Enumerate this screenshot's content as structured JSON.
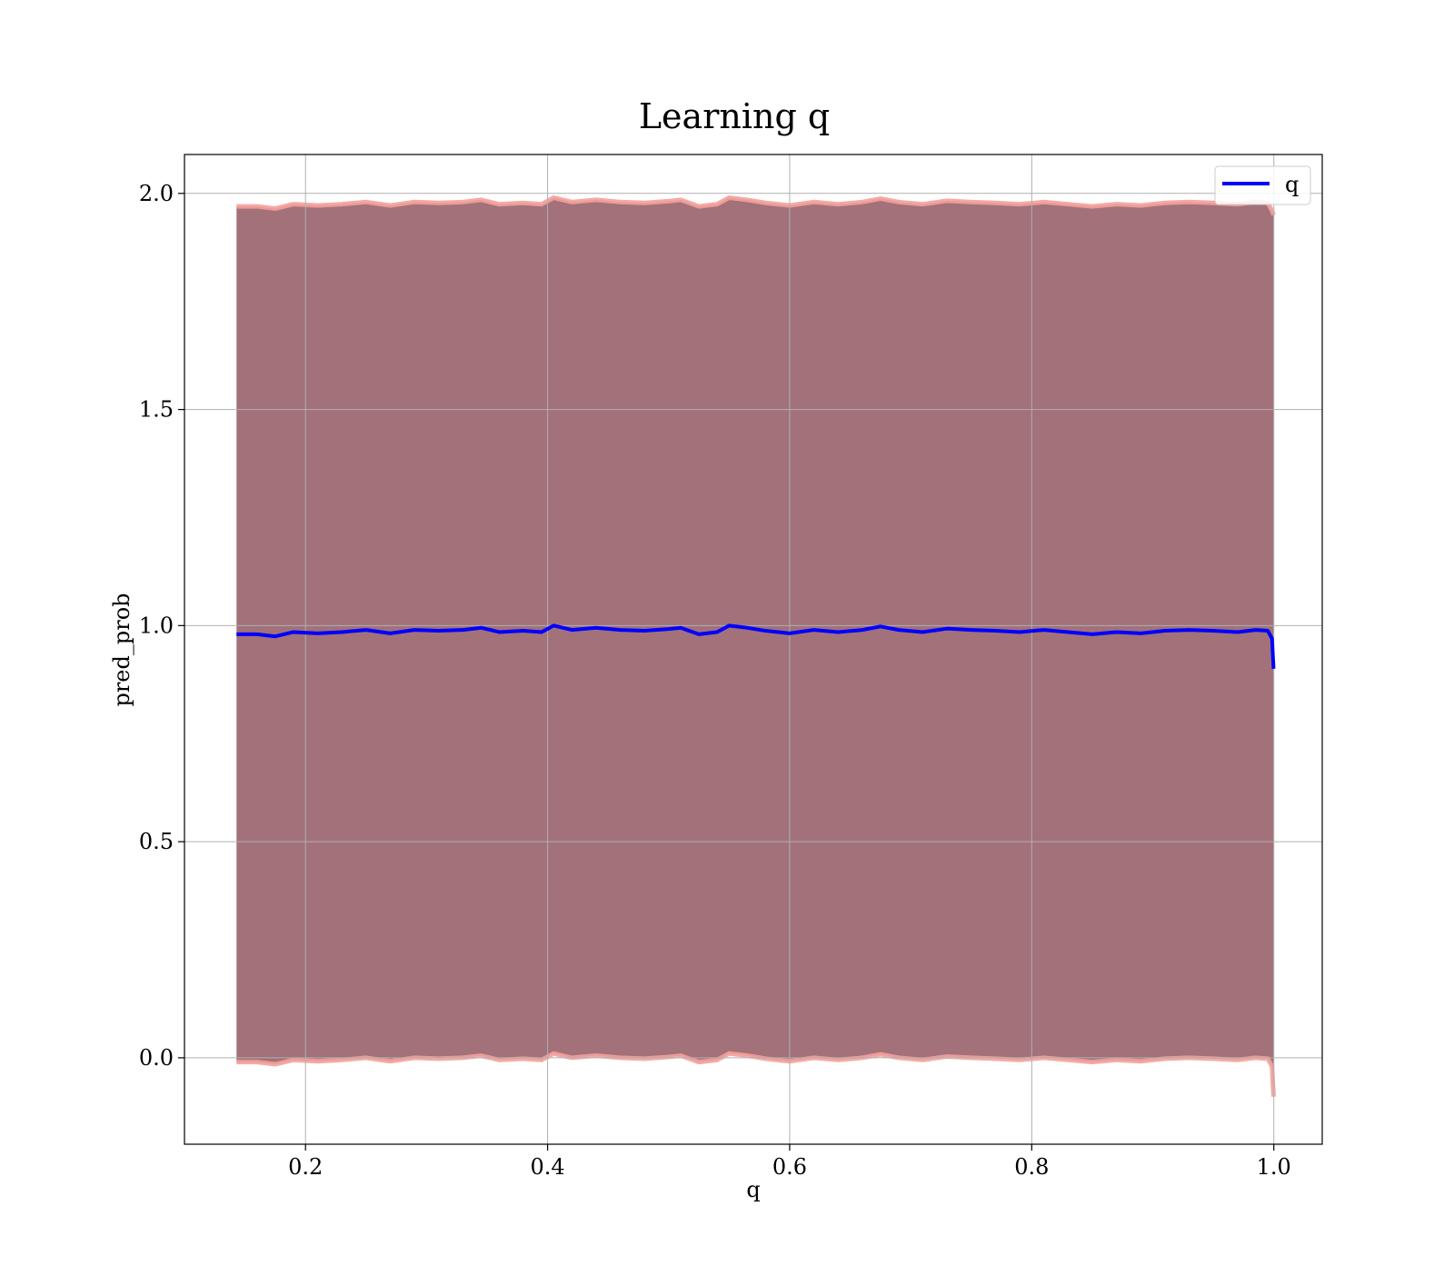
{
  "chart_data": {
    "type": "line",
    "title": "Learning q",
    "xlabel": "q",
    "ylabel": "pred_prob",
    "xlim": [
      0.1,
      1.04
    ],
    "ylim": [
      -0.2,
      2.09
    ],
    "grid": true,
    "legend_position": "top-right",
    "x_ticks": [
      0.2,
      0.4,
      0.6,
      0.8,
      1.0
    ],
    "x_tick_labels": [
      "0.2",
      "0.4",
      "0.6",
      "0.8",
      "1.0"
    ],
    "y_ticks": [
      0.0,
      0.5,
      1.0,
      1.5,
      2.0
    ],
    "y_tick_labels": [
      "0.0",
      "0.5",
      "1.0",
      "1.5",
      "2.0"
    ],
    "series": [
      {
        "name": "q",
        "color": "#0000ff",
        "x": [
          0.143,
          0.16,
          0.175,
          0.19,
          0.21,
          0.23,
          0.25,
          0.27,
          0.29,
          0.31,
          0.33,
          0.345,
          0.36,
          0.38,
          0.395,
          0.405,
          0.42,
          0.44,
          0.46,
          0.48,
          0.5,
          0.51,
          0.525,
          0.54,
          0.55,
          0.565,
          0.58,
          0.6,
          0.62,
          0.64,
          0.66,
          0.675,
          0.69,
          0.71,
          0.73,
          0.75,
          0.77,
          0.79,
          0.81,
          0.83,
          0.85,
          0.87,
          0.89,
          0.91,
          0.93,
          0.95,
          0.97,
          0.985,
          0.995,
          0.9985,
          0.9998
        ],
        "y": [
          0.98,
          0.98,
          0.975,
          0.985,
          0.982,
          0.985,
          0.99,
          0.982,
          0.99,
          0.988,
          0.99,
          0.995,
          0.985,
          0.988,
          0.985,
          1.0,
          0.99,
          0.995,
          0.99,
          0.988,
          0.992,
          0.995,
          0.98,
          0.985,
          1.0,
          0.995,
          0.988,
          0.982,
          0.99,
          0.985,
          0.99,
          0.998,
          0.99,
          0.985,
          0.993,
          0.99,
          0.988,
          0.985,
          0.99,
          0.985,
          0.98,
          0.985,
          0.982,
          0.988,
          0.99,
          0.988,
          0.985,
          0.99,
          0.988,
          0.97,
          0.9
        ],
        "band_lower": [
          -0.01,
          -0.01,
          -0.015,
          -0.005,
          -0.008,
          -0.005,
          0.0,
          -0.008,
          0.0,
          -0.002,
          0.0,
          0.005,
          -0.005,
          -0.002,
          -0.005,
          0.01,
          0.0,
          0.005,
          0.0,
          -0.002,
          0.002,
          0.005,
          -0.01,
          -0.005,
          0.01,
          0.005,
          -0.002,
          -0.008,
          0.0,
          -0.005,
          0.0,
          0.008,
          0.0,
          -0.005,
          0.003,
          0.0,
          -0.002,
          -0.005,
          0.0,
          -0.005,
          -0.01,
          -0.005,
          -0.008,
          -0.002,
          0.0,
          -0.002,
          -0.005,
          0.0,
          -0.002,
          -0.02,
          -0.09
        ],
        "band_upper": [
          1.97,
          1.97,
          1.965,
          1.975,
          1.972,
          1.975,
          1.98,
          1.972,
          1.98,
          1.978,
          1.98,
          1.985,
          1.975,
          1.978,
          1.975,
          1.99,
          1.98,
          1.985,
          1.98,
          1.978,
          1.982,
          1.985,
          1.97,
          1.975,
          1.99,
          1.985,
          1.978,
          1.972,
          1.98,
          1.975,
          1.98,
          1.988,
          1.98,
          1.975,
          1.983,
          1.98,
          1.978,
          1.975,
          1.98,
          1.975,
          1.97,
          1.975,
          1.972,
          1.978,
          1.98,
          1.978,
          1.975,
          1.98,
          1.978,
          1.96,
          1.95
        ]
      }
    ],
    "band_fill_color": "#a2717a",
    "band_edge_color": "#f4a09a"
  }
}
